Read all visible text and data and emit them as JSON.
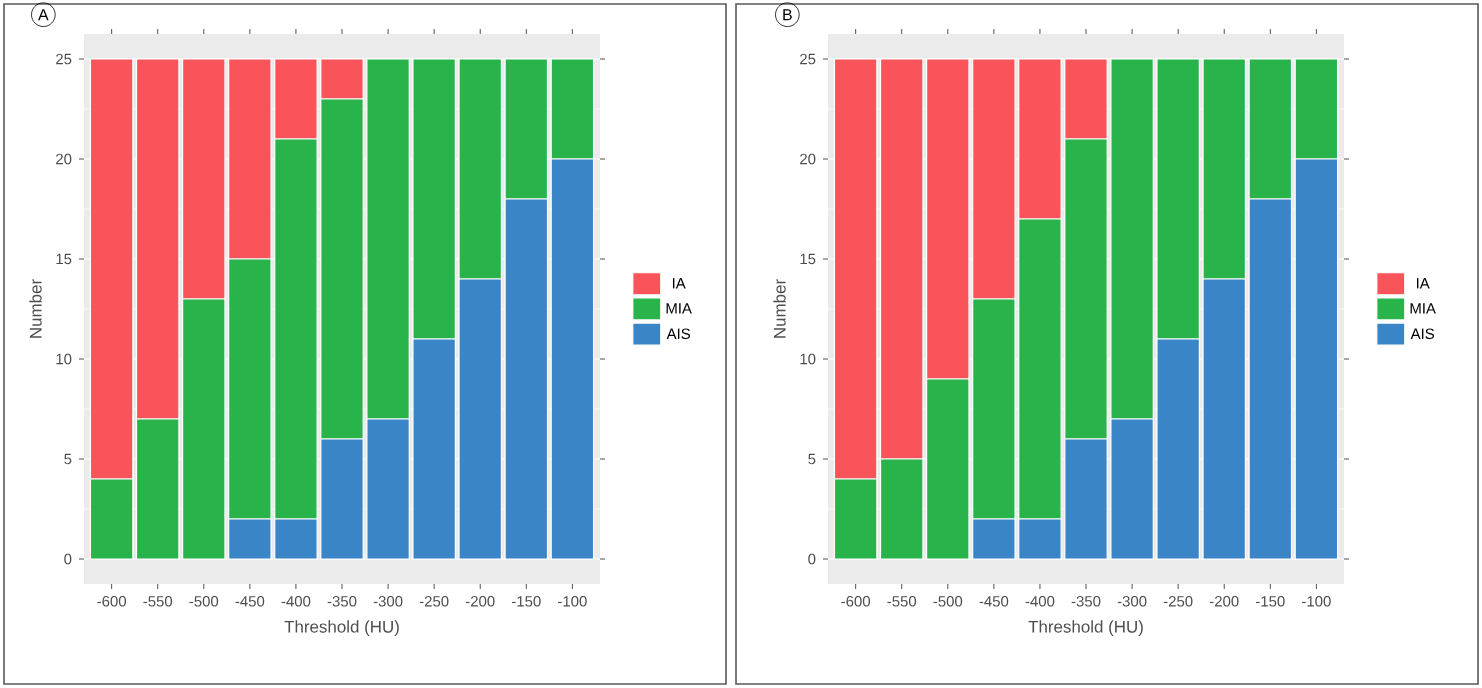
{
  "chart_data": [
    {
      "type": "bar",
      "stacked": true,
      "title": "A",
      "xlabel": "Threshold (HU)",
      "ylabel": "Number",
      "categories": [
        "-600",
        "-550",
        "-500",
        "-450",
        "-400",
        "-350",
        "-300",
        "-250",
        "-200",
        "-150",
        "-100"
      ],
      "series": [
        {
          "name": "AIS",
          "color": "#3a84c8",
          "values": [
            0,
            0,
            0,
            2,
            2,
            6,
            7,
            11,
            14,
            18,
            20
          ]
        },
        {
          "name": "MIA",
          "color": "#28b34b",
          "values": [
            4,
            7,
            13,
            13,
            19,
            17,
            18,
            14,
            11,
            7,
            5
          ]
        },
        {
          "name": "IA",
          "color": "#f8545a",
          "values": [
            21,
            18,
            12,
            10,
            4,
            2,
            0,
            0,
            0,
            0,
            0
          ]
        }
      ],
      "ylim": [
        -1.25,
        26.25
      ],
      "yticks": [
        0,
        5,
        10,
        15,
        20,
        25
      ],
      "grid": "y",
      "legend": "right"
    },
    {
      "type": "bar",
      "stacked": true,
      "title": "B",
      "xlabel": "Threshold (HU)",
      "ylabel": "Number",
      "categories": [
        "-600",
        "-550",
        "-500",
        "-450",
        "-400",
        "-350",
        "-300",
        "-250",
        "-200",
        "-150",
        "-100"
      ],
      "series": [
        {
          "name": "AIS",
          "color": "#3a84c8",
          "values": [
            0,
            0,
            0,
            2,
            2,
            6,
            7,
            11,
            14,
            18,
            20
          ]
        },
        {
          "name": "MIA",
          "color": "#28b34b",
          "values": [
            4,
            5,
            9,
            11,
            15,
            15,
            18,
            14,
            11,
            7,
            5
          ]
        },
        {
          "name": "IA",
          "color": "#f8545a",
          "values": [
            21,
            20,
            16,
            12,
            8,
            4,
            0,
            0,
            0,
            0,
            0
          ]
        }
      ],
      "ylim": [
        -1.25,
        26.25
      ],
      "yticks": [
        0,
        5,
        10,
        15,
        20,
        25
      ],
      "grid": "y",
      "legend": "right"
    }
  ]
}
